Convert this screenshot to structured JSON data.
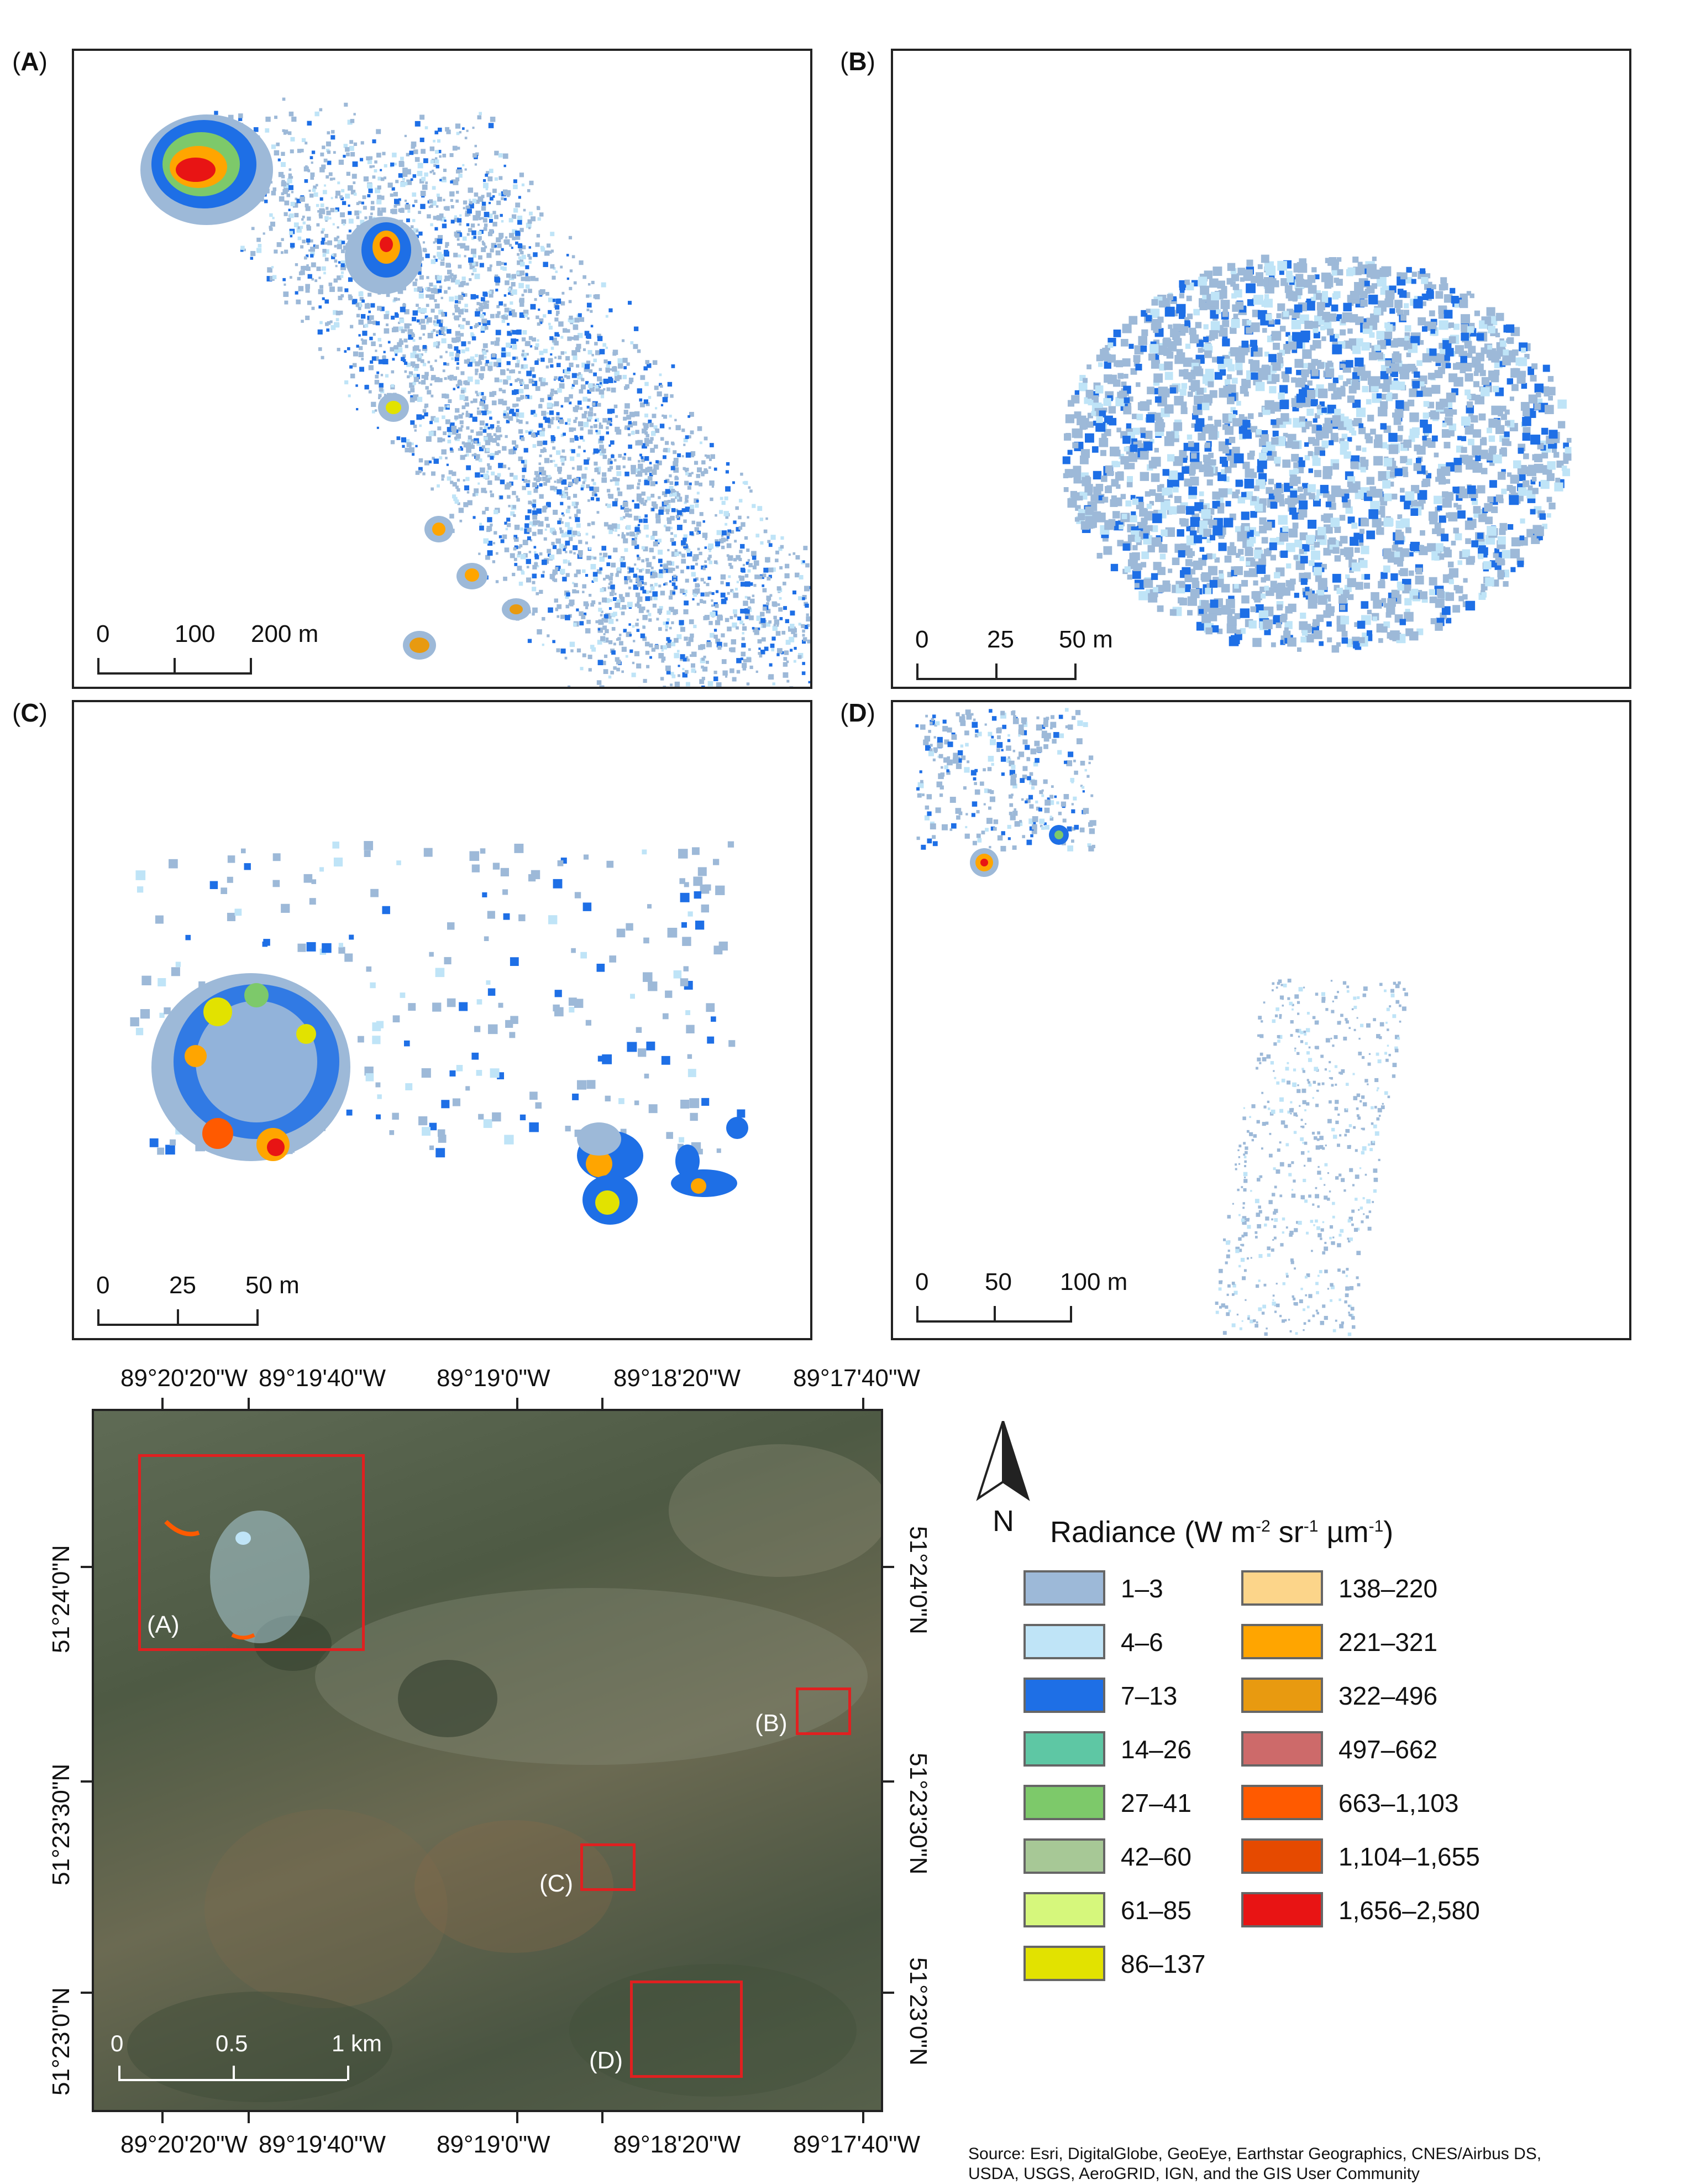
{
  "panels": {
    "A": {
      "label_letter": "A",
      "scale": {
        "t0": "0",
        "t1": "100",
        "t2": "200 m"
      }
    },
    "B": {
      "label_letter": "B",
      "scale": {
        "t0": "0",
        "t1": "25",
        "t2": "50 m"
      }
    },
    "C": {
      "label_letter": "C",
      "scale": {
        "t0": "0",
        "t1": "25",
        "t2": "50 m"
      }
    },
    "D": {
      "label_letter": "D",
      "scale": {
        "t0": "0",
        "t1": "50",
        "t2": "100 m"
      }
    }
  },
  "overview": {
    "top_coords": [
      "89°20'20\"W",
      "89°19'40\"W",
      "89°19'0\"W",
      "89°18'20\"W",
      "89°17'40\"W"
    ],
    "bottom_coords": [
      "89°20'20\"W",
      "89°19'40\"W",
      "89°19'0\"W",
      "89°18'20\"W",
      "89°17'40\"W"
    ],
    "left_coords": [
      "51°24'0\"N",
      "51°23'30\"N",
      "51°23'0\"N"
    ],
    "right_coords": [
      "51°24'0\"N",
      "51°23'30\"N",
      "51°23'0\"N"
    ],
    "boxes": [
      "(A)",
      "(B)",
      "(C)",
      "(D)"
    ],
    "scale": {
      "t0": "0",
      "t1": "0.5",
      "t2": "1 km"
    }
  },
  "north_label": "N",
  "legend": {
    "title_main": "Radiance (W m",
    "title_exp1": "-2",
    "title_mid1": " sr",
    "title_exp2": "-1",
    "title_mid2": " µm",
    "title_exp3": "-1",
    "title_end": ")",
    "items": [
      {
        "label": "1–3",
        "color": "#9db9d8"
      },
      {
        "label": "4–6",
        "color": "#bfe4f7"
      },
      {
        "label": "7–13",
        "color": "#1e6fe6"
      },
      {
        "label": "14–26",
        "color": "#5ec7a4"
      },
      {
        "label": "27–41",
        "color": "#7dc96a"
      },
      {
        "label": "42–60",
        "color": "#a7c896"
      },
      {
        "label": "61–85",
        "color": "#d6f77c"
      },
      {
        "label": "86–137",
        "color": "#e2e200"
      },
      {
        "label": "138–220",
        "color": "#fcd58a"
      },
      {
        "label": "221–321",
        "color": "#ffa500"
      },
      {
        "label": "322–496",
        "color": "#e89a10"
      },
      {
        "label": "497–662",
        "color": "#cd6a6a"
      },
      {
        "label": "663–1,103",
        "color": "#ff5a00"
      },
      {
        "label": "1,104–1,655",
        "color": "#e64a00"
      },
      {
        "label": "1,656–2,580",
        "color": "#e81414"
      }
    ]
  },
  "source": "Source: Esri, DigitalGlobe, GeoEye, Earthstar Geographics, CNES/Airbus DS, USDA, USGS, AeroGRID, IGN, and the GIS User Community"
}
